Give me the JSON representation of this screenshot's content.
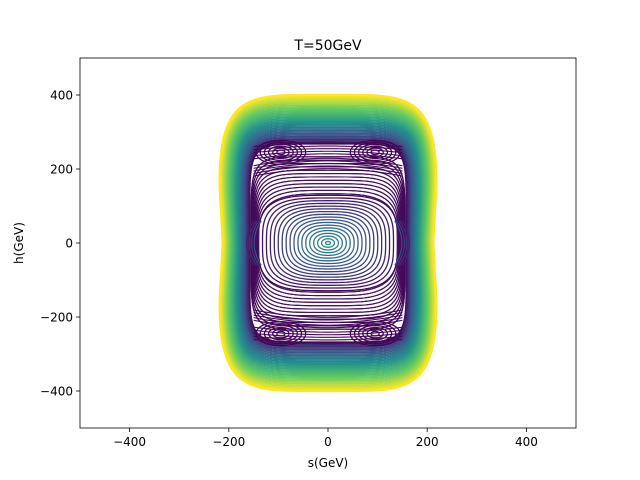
{
  "chart_data": {
    "type": "contour",
    "title": "T=50GeV",
    "xlabel": "s(GeV)",
    "ylabel": "h(GeV)",
    "xlim": [
      -500,
      500
    ],
    "ylim": [
      -500,
      500
    ],
    "xticks": [
      -400,
      -200,
      0,
      200,
      400
    ],
    "yticks": [
      -400,
      -200,
      0,
      200,
      400
    ],
    "xtick_labels": [
      "−400",
      "−200",
      "0",
      "200",
      "400"
    ],
    "ytick_labels": [
      "−400",
      "−200",
      "0",
      "200",
      "400"
    ],
    "grid": false,
    "legend": "none",
    "colormap": "viridis",
    "colormap_stops": [
      "#440154",
      "#3b528b",
      "#21918c",
      "#5ec962",
      "#fde725"
    ],
    "outer_contour_extent": {
      "s_max": 220,
      "h_max": 400
    },
    "features": [
      {
        "kind": "central_minimum",
        "s": 0,
        "h": 0
      },
      {
        "kind": "local_minimum",
        "s": -95,
        "h": 245
      },
      {
        "kind": "local_minimum",
        "s": 95,
        "h": 245
      },
      {
        "kind": "local_minimum",
        "s": -95,
        "h": -245
      },
      {
        "kind": "local_minimum",
        "s": 95,
        "h": -245
      },
      {
        "kind": "saddle",
        "s": 0,
        "h": 235
      },
      {
        "kind": "saddle",
        "s": 0,
        "h": -235
      },
      {
        "kind": "saddle",
        "s": -145,
        "h": 0
      },
      {
        "kind": "saddle",
        "s": 145,
        "h": 0
      }
    ]
  }
}
